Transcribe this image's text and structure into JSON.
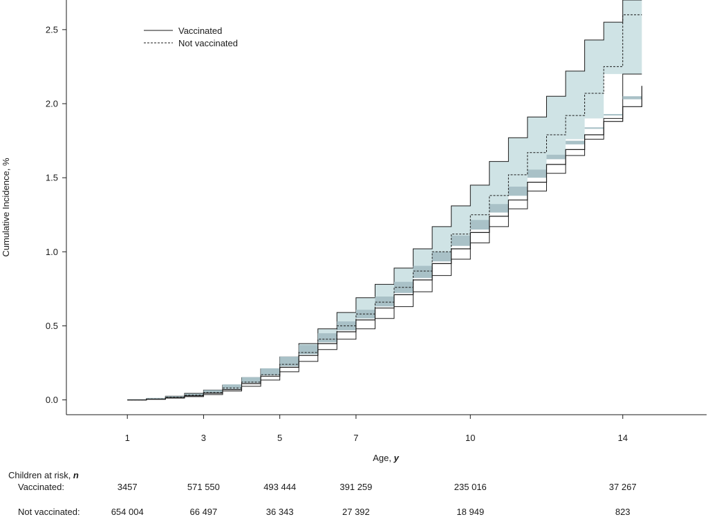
{
  "chart_data": {
    "type": "line",
    "xlabel": "Age, ",
    "xlabel_italic": "y",
    "ylabel": "Cumulative Incidence, %",
    "xlim": [
      -0.6,
      16.2
    ],
    "ylim": [
      -0.1,
      2.7
    ],
    "x_ticks": [
      1,
      3,
      5,
      7,
      10,
      14
    ],
    "y_ticks": [
      0.0,
      0.5,
      1.0,
      1.5,
      2.0,
      2.5
    ],
    "y_tick_labels": [
      "0.0",
      "0.5",
      "1.0",
      "1.5",
      "2.0",
      "2.5"
    ],
    "legend_position": "top-left",
    "band_colors": {
      "not_vaccinated": "#cfe3e5",
      "vaccinated": "#a9c1c7"
    },
    "line_color": "#1a1a1a",
    "series": [
      {
        "name": "Vaccinated",
        "style": "solid",
        "x": [
          1,
          1.5,
          2,
          2.5,
          3,
          3.5,
          4,
          4.5,
          5,
          5.5,
          6,
          6.5,
          7,
          7.5,
          8,
          8.5,
          9,
          9.5,
          10,
          10.5,
          11,
          11.5,
          12,
          12.5,
          13,
          13.5,
          14,
          14.5
        ],
        "y": [
          0.0,
          0.005,
          0.015,
          0.028,
          0.045,
          0.07,
          0.11,
          0.16,
          0.22,
          0.3,
          0.38,
          0.46,
          0.54,
          0.62,
          0.71,
          0.81,
          0.92,
          1.02,
          1.13,
          1.24,
          1.35,
          1.47,
          1.59,
          1.69,
          1.79,
          1.88,
          1.98,
          2.12
        ],
        "ci_lower": [
          0.0,
          0.004,
          0.013,
          0.025,
          0.042,
          0.066,
          0.105,
          0.154,
          0.213,
          0.292,
          0.371,
          0.45,
          0.53,
          0.609,
          0.698,
          0.797,
          0.905,
          1.0,
          1.11,
          1.215,
          1.322,
          1.44,
          1.555,
          1.655,
          1.75,
          1.84,
          1.93,
          2.05
        ],
        "ci_upper": [
          0.0,
          0.006,
          0.017,
          0.031,
          0.048,
          0.074,
          0.115,
          0.166,
          0.227,
          0.308,
          0.389,
          0.47,
          0.55,
          0.631,
          0.722,
          0.823,
          0.935,
          1.04,
          1.15,
          1.265,
          1.378,
          1.5,
          1.625,
          1.725,
          1.83,
          1.92,
          2.03,
          2.19
        ]
      },
      {
        "name": "Not vaccinated",
        "style": "dashed",
        "x": [
          1,
          1.5,
          2,
          2.5,
          3,
          3.5,
          4,
          4.5,
          5,
          5.5,
          6,
          6.5,
          7,
          7.5,
          8,
          8.5,
          9,
          9.5,
          10,
          10.5,
          11,
          11.5,
          12,
          12.5,
          13,
          13.5,
          14,
          14.5
        ],
        "y": [
          0.0,
          0.006,
          0.018,
          0.032,
          0.05,
          0.08,
          0.12,
          0.17,
          0.24,
          0.32,
          0.41,
          0.5,
          0.58,
          0.66,
          0.76,
          0.87,
          1.0,
          1.12,
          1.25,
          1.38,
          1.52,
          1.67,
          1.79,
          1.92,
          2.07,
          2.25,
          2.6,
          2.6
        ],
        "ci_lower": [
          0.0,
          0.004,
          0.012,
          0.022,
          0.036,
          0.06,
          0.092,
          0.134,
          0.19,
          0.26,
          0.34,
          0.41,
          0.48,
          0.55,
          0.63,
          0.73,
          0.84,
          0.95,
          1.06,
          1.17,
          1.29,
          1.41,
          1.53,
          1.65,
          1.76,
          1.9,
          2.2,
          2.2
        ],
        "ci_upper": [
          0.0,
          0.009,
          0.025,
          0.044,
          0.066,
          0.1,
          0.15,
          0.21,
          0.29,
          0.38,
          0.48,
          0.59,
          0.69,
          0.78,
          0.89,
          1.02,
          1.17,
          1.31,
          1.45,
          1.61,
          1.77,
          1.91,
          2.05,
          2.22,
          2.43,
          2.55,
          2.7,
          2.7
        ]
      }
    ]
  },
  "risk_table": {
    "header": "Children at risk, ",
    "header_italic": "n",
    "rows": [
      {
        "label": "Vaccinated:",
        "values": [
          "3457",
          "571 550",
          "493 444",
          "391 259",
          "235 016",
          "37 267"
        ]
      },
      {
        "label": "Not vaccinated:",
        "values": [
          "654 004",
          "66 497",
          "36 343",
          "27 392",
          "18 949",
          "823"
        ]
      }
    ]
  }
}
